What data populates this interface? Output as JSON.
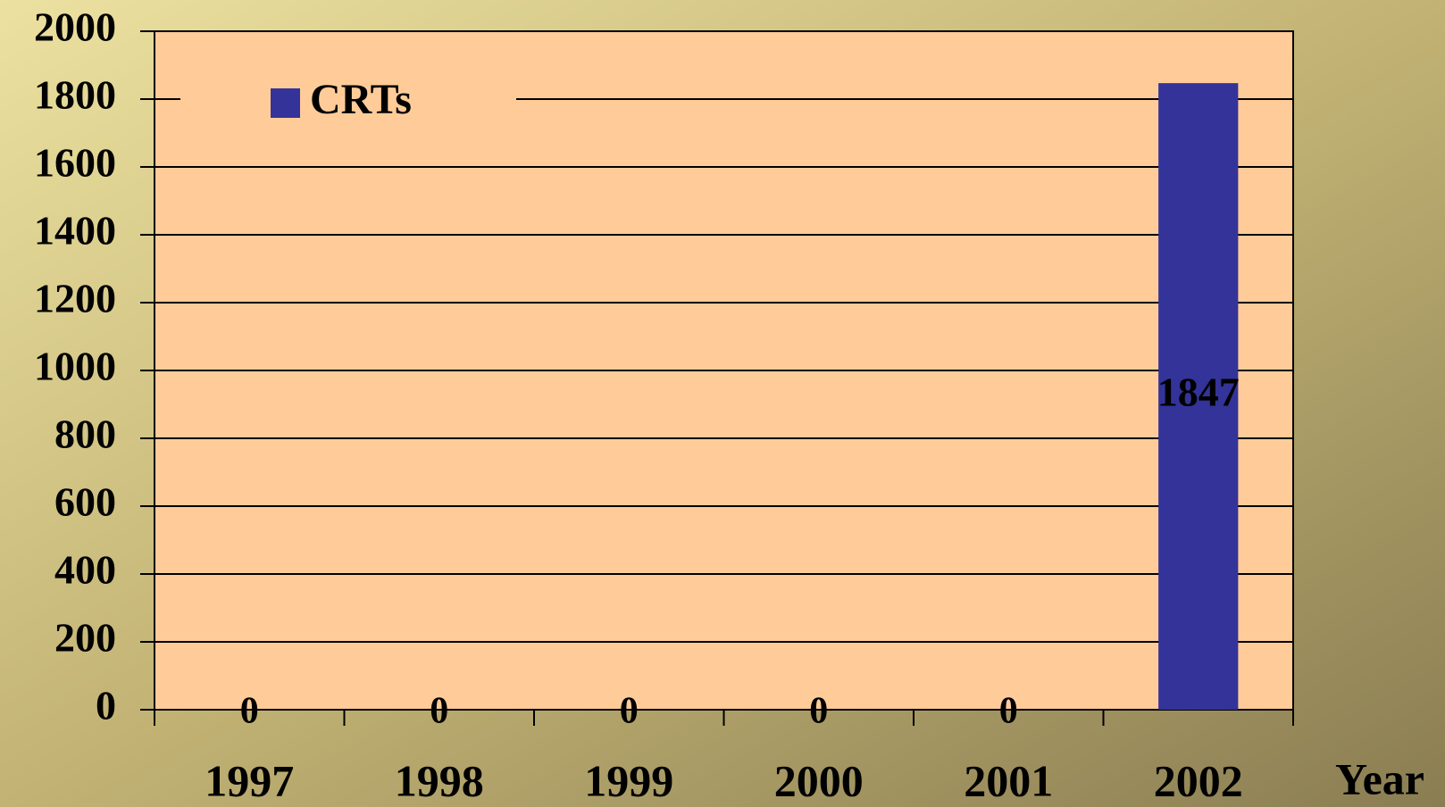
{
  "chart_data": {
    "type": "bar",
    "categories": [
      "1997",
      "1998",
      "1999",
      "2000",
      "2001",
      "2002"
    ],
    "series": [
      {
        "name": "CRTs",
        "color": "#333399",
        "values": [
          0,
          0,
          0,
          0,
          0,
          1847
        ]
      }
    ],
    "xlabel": "Year",
    "ylim": [
      0,
      2000
    ],
    "yticks": [
      0,
      200,
      400,
      600,
      800,
      1000,
      1200,
      1400,
      1600,
      1800,
      2000
    ],
    "grid": true,
    "legend": "top-left",
    "plot_background": "#ffcc99"
  }
}
